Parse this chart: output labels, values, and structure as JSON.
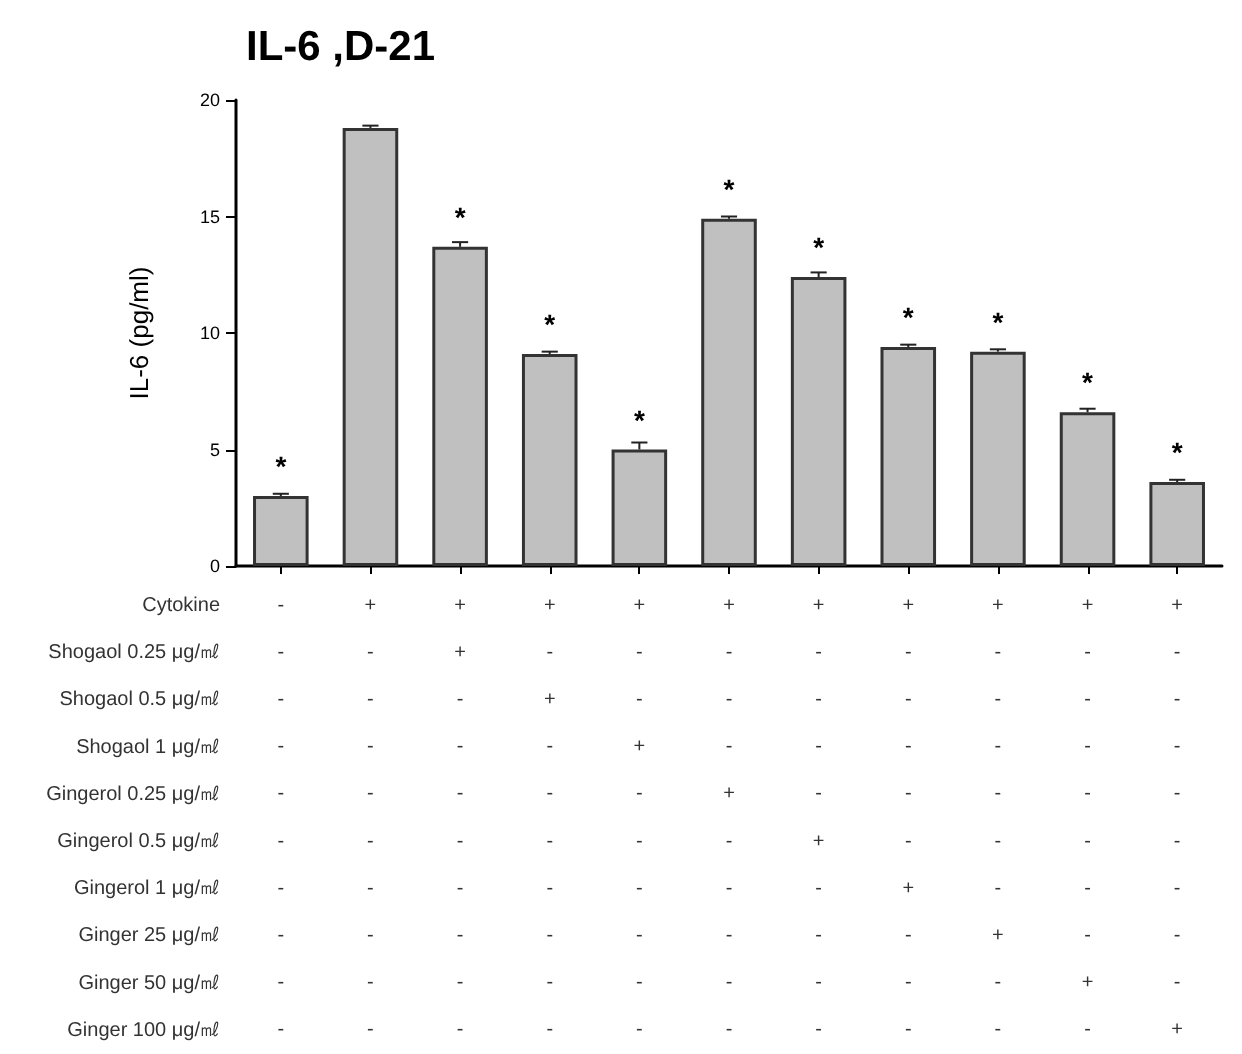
{
  "chart_data": {
    "type": "bar",
    "title": "IL-6 ,D-21",
    "ylabel": "IL-6 (pg/ml)",
    "categories": [
      "-\n-\n-\n-\n-\n-\n-\n-\n-\n-",
      "+\n-\n-\n-\n-\n-\n-\n-\n-\n-",
      "+\n+\n-\n-\n-\n-\n-\n-\n-\n-",
      "+\n-\n+\n-\n-\n-\n-\n-\n-\n-",
      "+\n-\n-\n+\n-\n-\n-\n-\n-\n-",
      "+\n-\n-\n-\n+\n-\n-\n-\n-\n-",
      "+\n-\n-\n-\n-\n+\n-\n-\n-\n-",
      "+\n-\n-\n-\n-\n-\n+\n-\n-\n-",
      "+\n-\n-\n-\n-\n-\n-\n+\n-\n-",
      "+\n-\n-\n-\n-\n-\n-\n-\n+\n-",
      "+\n-\n-\n-\n-\n-\n-\n-\n-\n+"
    ],
    "values": [
      3.0,
      18.8,
      13.7,
      9.1,
      5.0,
      14.9,
      12.4,
      9.4,
      9.2,
      6.6,
      3.6
    ],
    "errors": [
      0.1,
      0.1,
      0.2,
      0.1,
      0.3,
      0.1,
      0.2,
      0.1,
      0.1,
      0.15,
      0.1
    ],
    "value_labels": [
      "*",
      null,
      "*",
      "*",
      "*",
      "*",
      "*",
      "*",
      "*",
      "*",
      "*"
    ],
    "color": "#c0c0c0",
    "ylim": [
      0,
      20
    ],
    "yticks": [
      0,
      5,
      10,
      15,
      20
    ],
    "annotations": [
      "Cytokine",
      "Shogaol 0.25 μg/㎖",
      "Shogaol 0.5 μg/㎖",
      "Shogaol 1 μg/㎖",
      "Gingerol 0.25 μg/㎖",
      "Gingerol 0.5 μg/㎖",
      "Gingerol 1 μg/㎖",
      "Ginger 25 μg/㎖",
      "Ginger 50 μg/㎖",
      "Ginger 100 μg/㎖"
    ]
  }
}
